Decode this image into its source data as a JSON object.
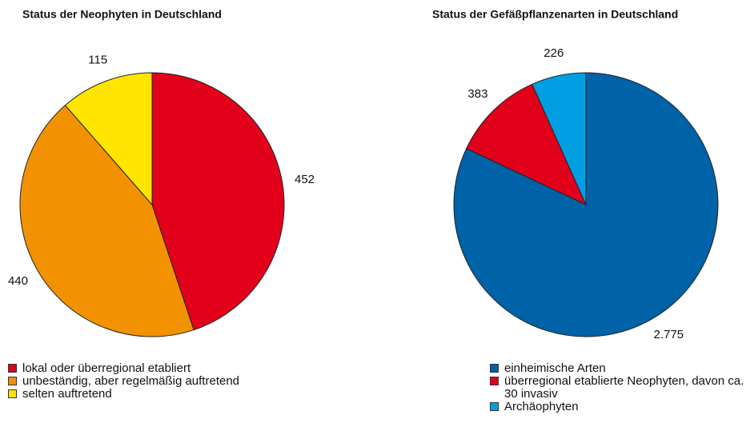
{
  "chart_data": [
    {
      "type": "pie",
      "title": "Status der Neophyten in Deutschland",
      "categories": [
        "lokal oder überregional etabliert",
        "unbeständig, aber regelmäßig auftretend",
        "selten auftretend"
      ],
      "values": [
        452,
        440,
        115
      ],
      "colors": [
        "#e2001a",
        "#f39200",
        "#ffe500"
      ]
    },
    {
      "type": "pie",
      "title": "Status der Gefäßpflanzenarten in Deutschland",
      "categories": [
        "einheimische Arten",
        "überregional etablierte Neophyten, davon ca. 30 invasiv",
        "Archäophyten"
      ],
      "values": [
        2775,
        383,
        226
      ],
      "value_labels": [
        "2.775",
        "383",
        "226"
      ],
      "colors": [
        "#0062a7",
        "#e2001a",
        "#009fe3"
      ]
    }
  ]
}
